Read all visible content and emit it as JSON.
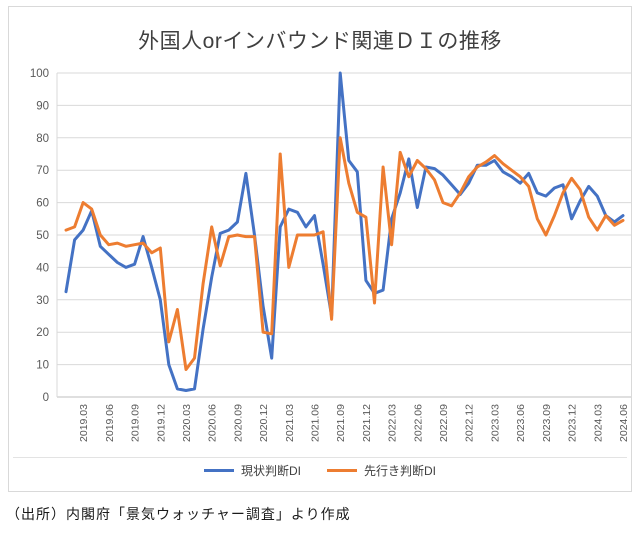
{
  "title": "外国人orインバウンド関連ＤＩの推移",
  "source_note": "（出所）内閣府「景気ウォッチャー調査」より作成",
  "colors": {
    "current_di": "#4472C4",
    "outlook_di": "#ED7D31",
    "gridline": "#D9D9D9",
    "axis_line": "#BFBFBF",
    "axis_text": "#595959",
    "title_text": "#404040"
  },
  "chart_data": {
    "type": "line",
    "title": "外国人orインバウンド関連ＤＩの推移",
    "xlabel": "",
    "ylabel": "",
    "ylim": [
      0,
      100
    ],
    "y_ticks": [
      0,
      10,
      20,
      30,
      40,
      50,
      60,
      70,
      80,
      90,
      100
    ],
    "grid": true,
    "legend_position": "bottom",
    "x_tick_interval_months": 3,
    "x_first_tick_label": "2019.03",
    "x": [
      "2019.01",
      "2019.02",
      "2019.03",
      "2019.04",
      "2019.05",
      "2019.06",
      "2019.07",
      "2019.08",
      "2019.09",
      "2019.10",
      "2019.11",
      "2019.12",
      "2020.01",
      "2020.02",
      "2020.03",
      "2020.04",
      "2020.05",
      "2020.06",
      "2020.07",
      "2020.08",
      "2020.09",
      "2020.10",
      "2020.11",
      "2020.12",
      "2021.01",
      "2021.02",
      "2021.03",
      "2021.04",
      "2021.05",
      "2021.06",
      "2021.07",
      "2021.08",
      "2021.09",
      "2021.10",
      "2021.11",
      "2021.12",
      "2022.01",
      "2022.02",
      "2022.03",
      "2022.04",
      "2022.05",
      "2022.06",
      "2022.07",
      "2022.08",
      "2022.09",
      "2022.10",
      "2022.11",
      "2022.12",
      "2023.01",
      "2023.02",
      "2023.03",
      "2023.04",
      "2023.05",
      "2023.06",
      "2023.07",
      "2023.08",
      "2023.09",
      "2023.10",
      "2023.11",
      "2023.12",
      "2024.01",
      "2024.02",
      "2024.03",
      "2024.04",
      "2024.05",
      "2024.06"
    ],
    "series": [
      {
        "name": "現状判断DI",
        "color": "#4472C4",
        "values": [
          32.5,
          48.5,
          51.5,
          57.5,
          46.5,
          44,
          41.5,
          40,
          41,
          49.5,
          40,
          30,
          10,
          2.5,
          2,
          2.5,
          21,
          37,
          50.5,
          51.5,
          54,
          69,
          50,
          28,
          12,
          52.5,
          58,
          57,
          52.5,
          56,
          41,
          25,
          100,
          73,
          69.5,
          36,
          32,
          33,
          55,
          63,
          73.5,
          58.5,
          71,
          70.5,
          68.5,
          65.5,
          62.5,
          66,
          71.5,
          71.5,
          73,
          69.5,
          68,
          66,
          69,
          63,
          62,
          64.5,
          65.5,
          55,
          60.5,
          65,
          62,
          56,
          54,
          56
        ]
      },
      {
        "name": "先行き判断DI",
        "color": "#ED7D31",
        "values": [
          51.5,
          52.5,
          60,
          58,
          50,
          47,
          47.5,
          46.5,
          47,
          47.5,
          44.5,
          46,
          17,
          27,
          8.5,
          12,
          35,
          52.5,
          40.5,
          49.5,
          50,
          49.5,
          49.5,
          20,
          19.5,
          75,
          40,
          50,
          50,
          50,
          51,
          24,
          80,
          66,
          57,
          55.5,
          29,
          71,
          47,
          75.5,
          68,
          73,
          70.5,
          67,
          60,
          59,
          63,
          68,
          71,
          72.5,
          74.5,
          72,
          70,
          68,
          65,
          55,
          50,
          56,
          63,
          67.5,
          64,
          55.5,
          51.5,
          56,
          53,
          54.5
        ]
      }
    ]
  }
}
